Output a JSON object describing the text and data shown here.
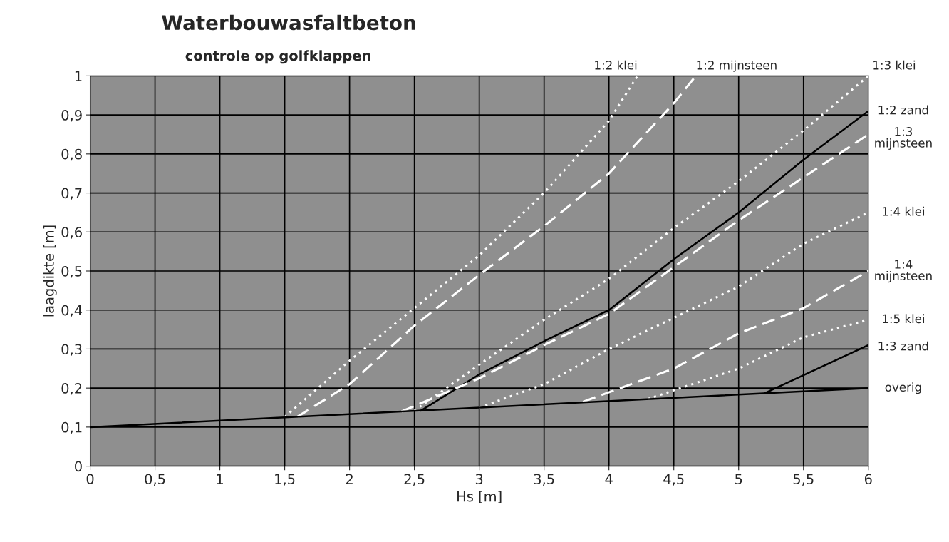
{
  "chart_data": {
    "type": "line",
    "title": "Waterbouwasfaltbeton",
    "subtitle": "controle op golfklappen",
    "xlabel": "Hs [m]",
    "ylabel": "laagdikte [m]",
    "xlim": [
      0,
      6
    ],
    "ylim": [
      0,
      1
    ],
    "xticks": [
      0,
      {
        "value": 0.5,
        "label": "0,5"
      },
      1,
      {
        "value": 1.5,
        "label": "1,5"
      },
      2,
      {
        "value": 2.5,
        "label": "2,5"
      },
      3,
      {
        "value": 3.5,
        "label": "3,5"
      },
      4,
      {
        "value": 4.5,
        "label": "4,5"
      },
      5,
      {
        "value": 5.5,
        "label": "5,5"
      },
      6
    ],
    "yticks": [
      0,
      {
        "value": 0.1,
        "label": "0,1"
      },
      {
        "value": 0.2,
        "label": "0,2"
      },
      {
        "value": 0.3,
        "label": "0,3"
      },
      {
        "value": 0.4,
        "label": "0,4"
      },
      {
        "value": 0.5,
        "label": "0,5"
      },
      {
        "value": 0.6,
        "label": "0,6"
      },
      {
        "value": 0.7,
        "label": "0,7"
      },
      {
        "value": 0.8,
        "label": "0,8"
      },
      {
        "value": 0.9,
        "label": "0,9"
      },
      1
    ],
    "grid": true,
    "series": [
      {
        "name": "1:2 klei",
        "color": "#ffffff",
        "line_style": "dotted",
        "x": [
          1.5,
          2,
          2.5,
          3,
          3.5,
          4,
          4.22
        ],
        "values": [
          0.126,
          0.27,
          0.405,
          0.54,
          0.7,
          0.885,
          1.0
        ]
      },
      {
        "name": "1:2 mijnsteen",
        "color": "#ffffff",
        "line_style": "dashed",
        "x": [
          1.6,
          2,
          2.5,
          3,
          3.5,
          4,
          4.5,
          4.67
        ],
        "values": [
          0.127,
          0.21,
          0.36,
          0.49,
          0.615,
          0.75,
          0.93,
          1.0
        ]
      },
      {
        "name": "1:3 klei",
        "color": "#ffffff",
        "line_style": "dotted",
        "x": [
          2.5,
          3,
          3.5,
          4,
          4.5,
          5,
          5.5,
          6
        ],
        "values": [
          0.142,
          0.26,
          0.375,
          0.48,
          0.61,
          0.73,
          0.86,
          1.0
        ]
      },
      {
        "name": "1:2 zand",
        "color": "#000000",
        "line_style": "solid",
        "x": [
          2.55,
          3,
          3.5,
          4,
          4.5,
          5,
          5.5,
          6
        ],
        "values": [
          0.142,
          0.235,
          0.32,
          0.4,
          0.53,
          0.65,
          0.785,
          0.91
        ]
      },
      {
        "name": "1:3 mijnsteen",
        "color": "#ffffff",
        "line_style": "dashed",
        "x": [
          2.4,
          3,
          3.5,
          4,
          4.5,
          5,
          5.5,
          6
        ],
        "values": [
          0.14,
          0.225,
          0.31,
          0.39,
          0.51,
          0.63,
          0.74,
          0.85
        ]
      },
      {
        "name": "1:4 klei",
        "color": "#ffffff",
        "line_style": "dotted",
        "x": [
          3,
          3.5,
          4,
          4.5,
          5,
          5.5,
          6
        ],
        "values": [
          0.15,
          0.21,
          0.3,
          0.38,
          0.46,
          0.57,
          0.65
        ]
      },
      {
        "name": "1:4 mijnsteen",
        "color": "#ffffff",
        "line_style": "dashed",
        "x": [
          3.8,
          4.5,
          5,
          5.5,
          6
        ],
        "values": [
          0.165,
          0.25,
          0.34,
          0.405,
          0.5
        ]
      },
      {
        "name": "1:5 klei",
        "color": "#ffffff",
        "line_style": "dotted",
        "x": [
          4.3,
          5,
          5.5,
          6
        ],
        "values": [
          0.172,
          0.25,
          0.33,
          0.375
        ]
      },
      {
        "name": "1:3 zand",
        "color": "#000000",
        "line_style": "solid",
        "x": [
          5.2,
          6
        ],
        "values": [
          0.187,
          0.31
        ]
      },
      {
        "name": "overig",
        "color": "#000000",
        "line_style": "solid",
        "x": [
          0,
          6
        ],
        "values": [
          0.1,
          0.2
        ]
      }
    ]
  }
}
